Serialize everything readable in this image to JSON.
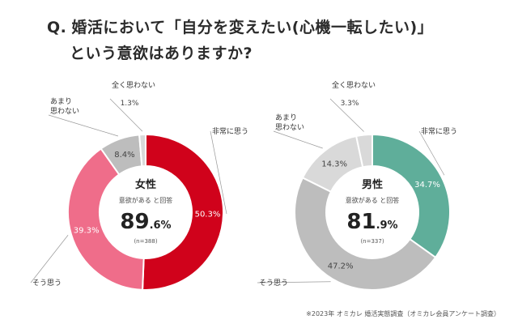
{
  "header": {
    "q_prefix": "Q.",
    "title_line1": "婚活において「自分を変えたい(心機一転したい)」",
    "title_line2": "という意欲はありますか?"
  },
  "colors": {
    "female_primary": "#d0021b",
    "female_secondary": "#ef6d8a",
    "male_primary": "#5fae9a",
    "gray": "#bdbdbd",
    "light_gray": "#d9d9d9"
  },
  "chart_data": [
    {
      "type": "pie",
      "donut": true,
      "center_title": "女性",
      "center_caption": "意欲がある と回答",
      "center_value_main": "89",
      "center_value_sub": ".6%",
      "n_label": "(n=388)",
      "slices": [
        {
          "label": "非常に思う",
          "value": 50.3
        },
        {
          "label": "そう思う",
          "value": 39.3
        },
        {
          "label": "あまり思わない",
          "value": 8.4
        },
        {
          "label": "全く思わない",
          "value": 1.3
        }
      ]
    },
    {
      "type": "pie",
      "donut": true,
      "center_title": "男性",
      "center_caption": "意欲がある と回答",
      "center_value_main": "81",
      "center_value_sub": ".9%",
      "n_label": "(n=337)",
      "slices": [
        {
          "label": "非常に思う",
          "value": 34.7
        },
        {
          "label": "そう思う",
          "value": 47.2
        },
        {
          "label": "あまり思わない",
          "value": 14.3
        },
        {
          "label": "全く思わない",
          "value": 3.3
        }
      ]
    }
  ],
  "footnote": "※2023年 オミカレ 婚活実態調査（オミカレ会員アンケート調査）"
}
